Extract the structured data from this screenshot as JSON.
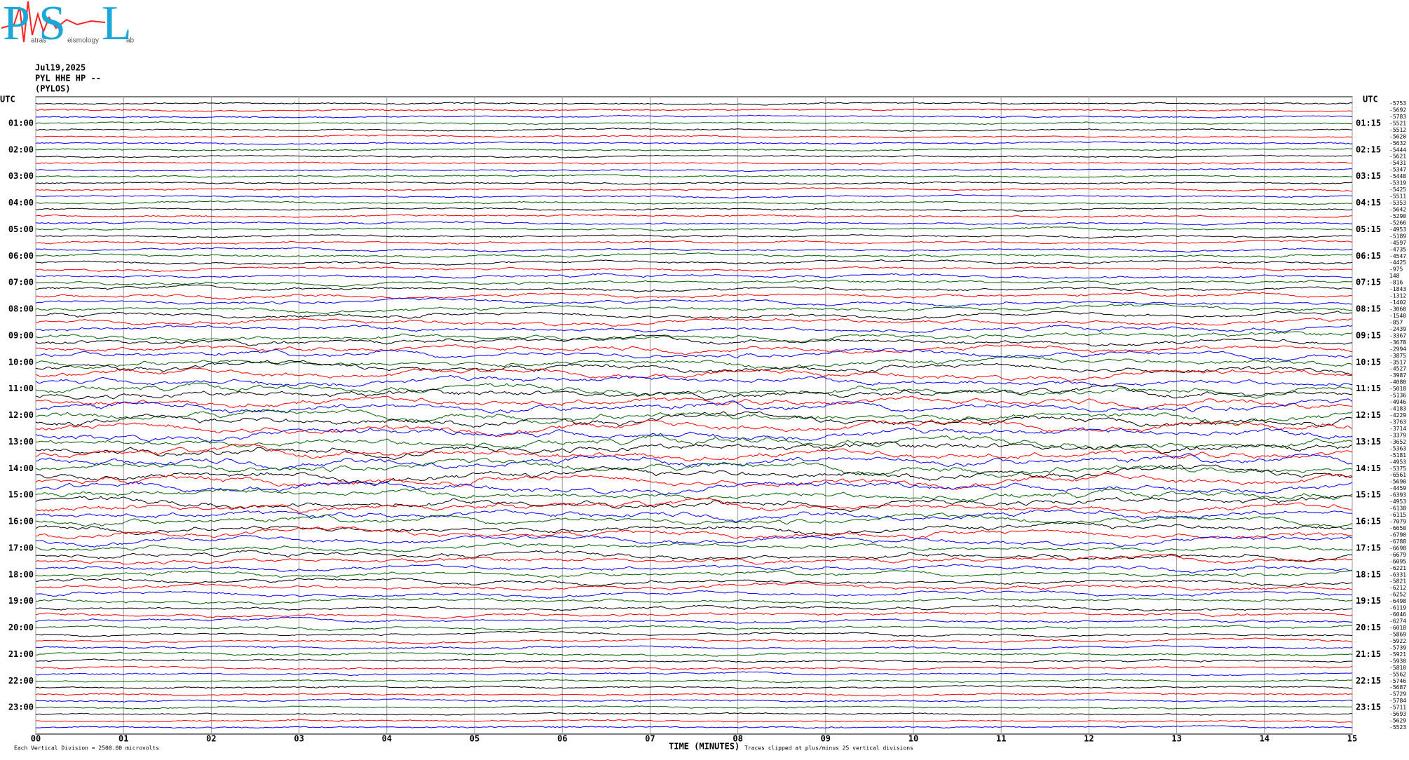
{
  "logo": {
    "initials": [
      "P",
      "S",
      "L"
    ],
    "words": [
      "atras",
      "eismology",
      "ab"
    ]
  },
  "header": {
    "date": "Jul19,2025",
    "station": "PYL HHE HP --",
    "location": "(PYLOS)"
  },
  "left_axis": {
    "title": "UTC",
    "labels": [
      "01:00",
      "02:00",
      "03:00",
      "04:00",
      "05:00",
      "06:00",
      "07:00",
      "08:00",
      "09:00",
      "10:00",
      "11:00",
      "12:00",
      "13:00",
      "14:00",
      "15:00",
      "16:00",
      "17:00",
      "18:00",
      "19:00",
      "20:00",
      "21:00",
      "22:00",
      "23:00"
    ]
  },
  "right_axis": {
    "title": "UTC",
    "labels": [
      "01:15",
      "02:15",
      "03:15",
      "04:15",
      "05:15",
      "06:15",
      "07:15",
      "08:15",
      "09:15",
      "10:15",
      "11:15",
      "12:15",
      "13:15",
      "14:15",
      "15:15",
      "16:15",
      "17:15",
      "18:15",
      "19:15",
      "20:15",
      "21:15",
      "22:15",
      "23:15"
    ],
    "offsets": [
      -5753,
      -5692,
      -5783,
      -5521,
      -5512,
      -5620,
      -5632,
      -5444,
      -5621,
      -5431,
      -5347,
      -5448,
      -5319,
      -5425,
      -5511,
      -5353,
      -5642,
      -5290,
      -5266,
      -4953,
      -5189,
      -4597,
      -4735,
      -4547,
      -4425,
      -975,
      148,
      -816,
      -1843,
      -1312,
      -1402,
      -3060,
      -1540,
      -857,
      -2439,
      -3367,
      -3678,
      -2994,
      -3875,
      -3517,
      -4527,
      -3987,
      -4080,
      -5018,
      -5136,
      -4946,
      -4183,
      -4229,
      -3763,
      -3714,
      -3379,
      -3652,
      -5363,
      -5181,
      -4953,
      -5375,
      -6561,
      -5690,
      -4459,
      -6393,
      -4953,
      -6138,
      -6115,
      -7079,
      -6650,
      -6790,
      -6788,
      -6698,
      -6679,
      -6095,
      -6221,
      -6331,
      -5821,
      -6212,
      -6252,
      -6498,
      -6119,
      -6046,
      -6274,
      -6018,
      -5869,
      -5922,
      -5739,
      -5921,
      -5930,
      -5810,
      -5562,
      -5746,
      -5687,
      -5729,
      -5784,
      -5711,
      -5693,
      -5629,
      -5523
    ]
  },
  "x_axis": {
    "ticks": [
      "00",
      "01",
      "02",
      "03",
      "04",
      "05",
      "06",
      "07",
      "08",
      "09",
      "10",
      "11",
      "12",
      "13",
      "14",
      "15"
    ],
    "title": "TIME (MINUTES)"
  },
  "footer": {
    "division": "Each Vertical Division = 2500.00 microvolts",
    "clip": "Traces clipped at plus/minus 25 vertical divisions"
  },
  "trace_colors": [
    "#000000",
    "#ff0000",
    "#0000ff",
    "#006400"
  ]
}
